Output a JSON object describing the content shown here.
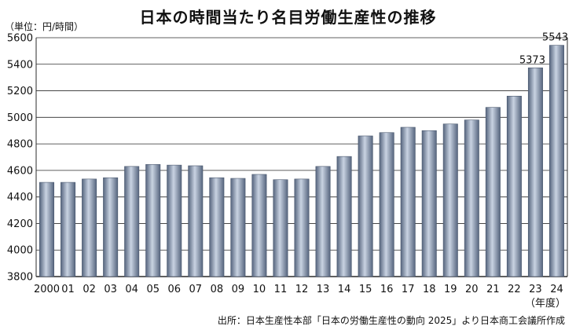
{
  "title": "日本の時間当たり名目労働生産性の推移",
  "unit_label": "（単位：円/時間）",
  "source": "出所：日本生産性本部「日本の労働生産性の動向 2025」より日本商工会議所作成",
  "colors": {
    "bar_light": "#c9d3e2",
    "bar_mid": "#8c9bb3",
    "bar_dark": "#56657e",
    "grid": "#2b2b2b"
  },
  "chart_data": {
    "type": "bar",
    "title": "日本の時間当たり名目労働生産性の推移",
    "xlabel": "（年度）",
    "ylabel": "（単位：円/時間）",
    "ylim": [
      3800,
      5600
    ],
    "yticks": [
      "3800",
      "4000",
      "4200",
      "4400",
      "4600",
      "4800",
      "5000",
      "5200",
      "5400",
      "5600"
    ],
    "grid": true,
    "categories": [
      "2000",
      "01",
      "02",
      "03",
      "04",
      "05",
      "06",
      "07",
      "08",
      "09",
      "10",
      "11",
      "12",
      "13",
      "14",
      "15",
      "16",
      "17",
      "18",
      "19",
      "20",
      "21",
      "22",
      "23",
      "24"
    ],
    "values": [
      4510,
      4510,
      4535,
      4545,
      4630,
      4645,
      4640,
      4635,
      4545,
      4540,
      4570,
      4530,
      4535,
      4630,
      4705,
      4860,
      4885,
      4925,
      4900,
      4950,
      4980,
      5075,
      5160,
      5373,
      5543
    ],
    "data_labels": [
      "",
      "",
      "",
      "",
      "",
      "",
      "",
      "",
      "",
      "",
      "",
      "",
      "",
      "",
      "",
      "",
      "",
      "",
      "",
      "",
      "",
      "",
      "",
      "5373",
      "5543"
    ]
  }
}
